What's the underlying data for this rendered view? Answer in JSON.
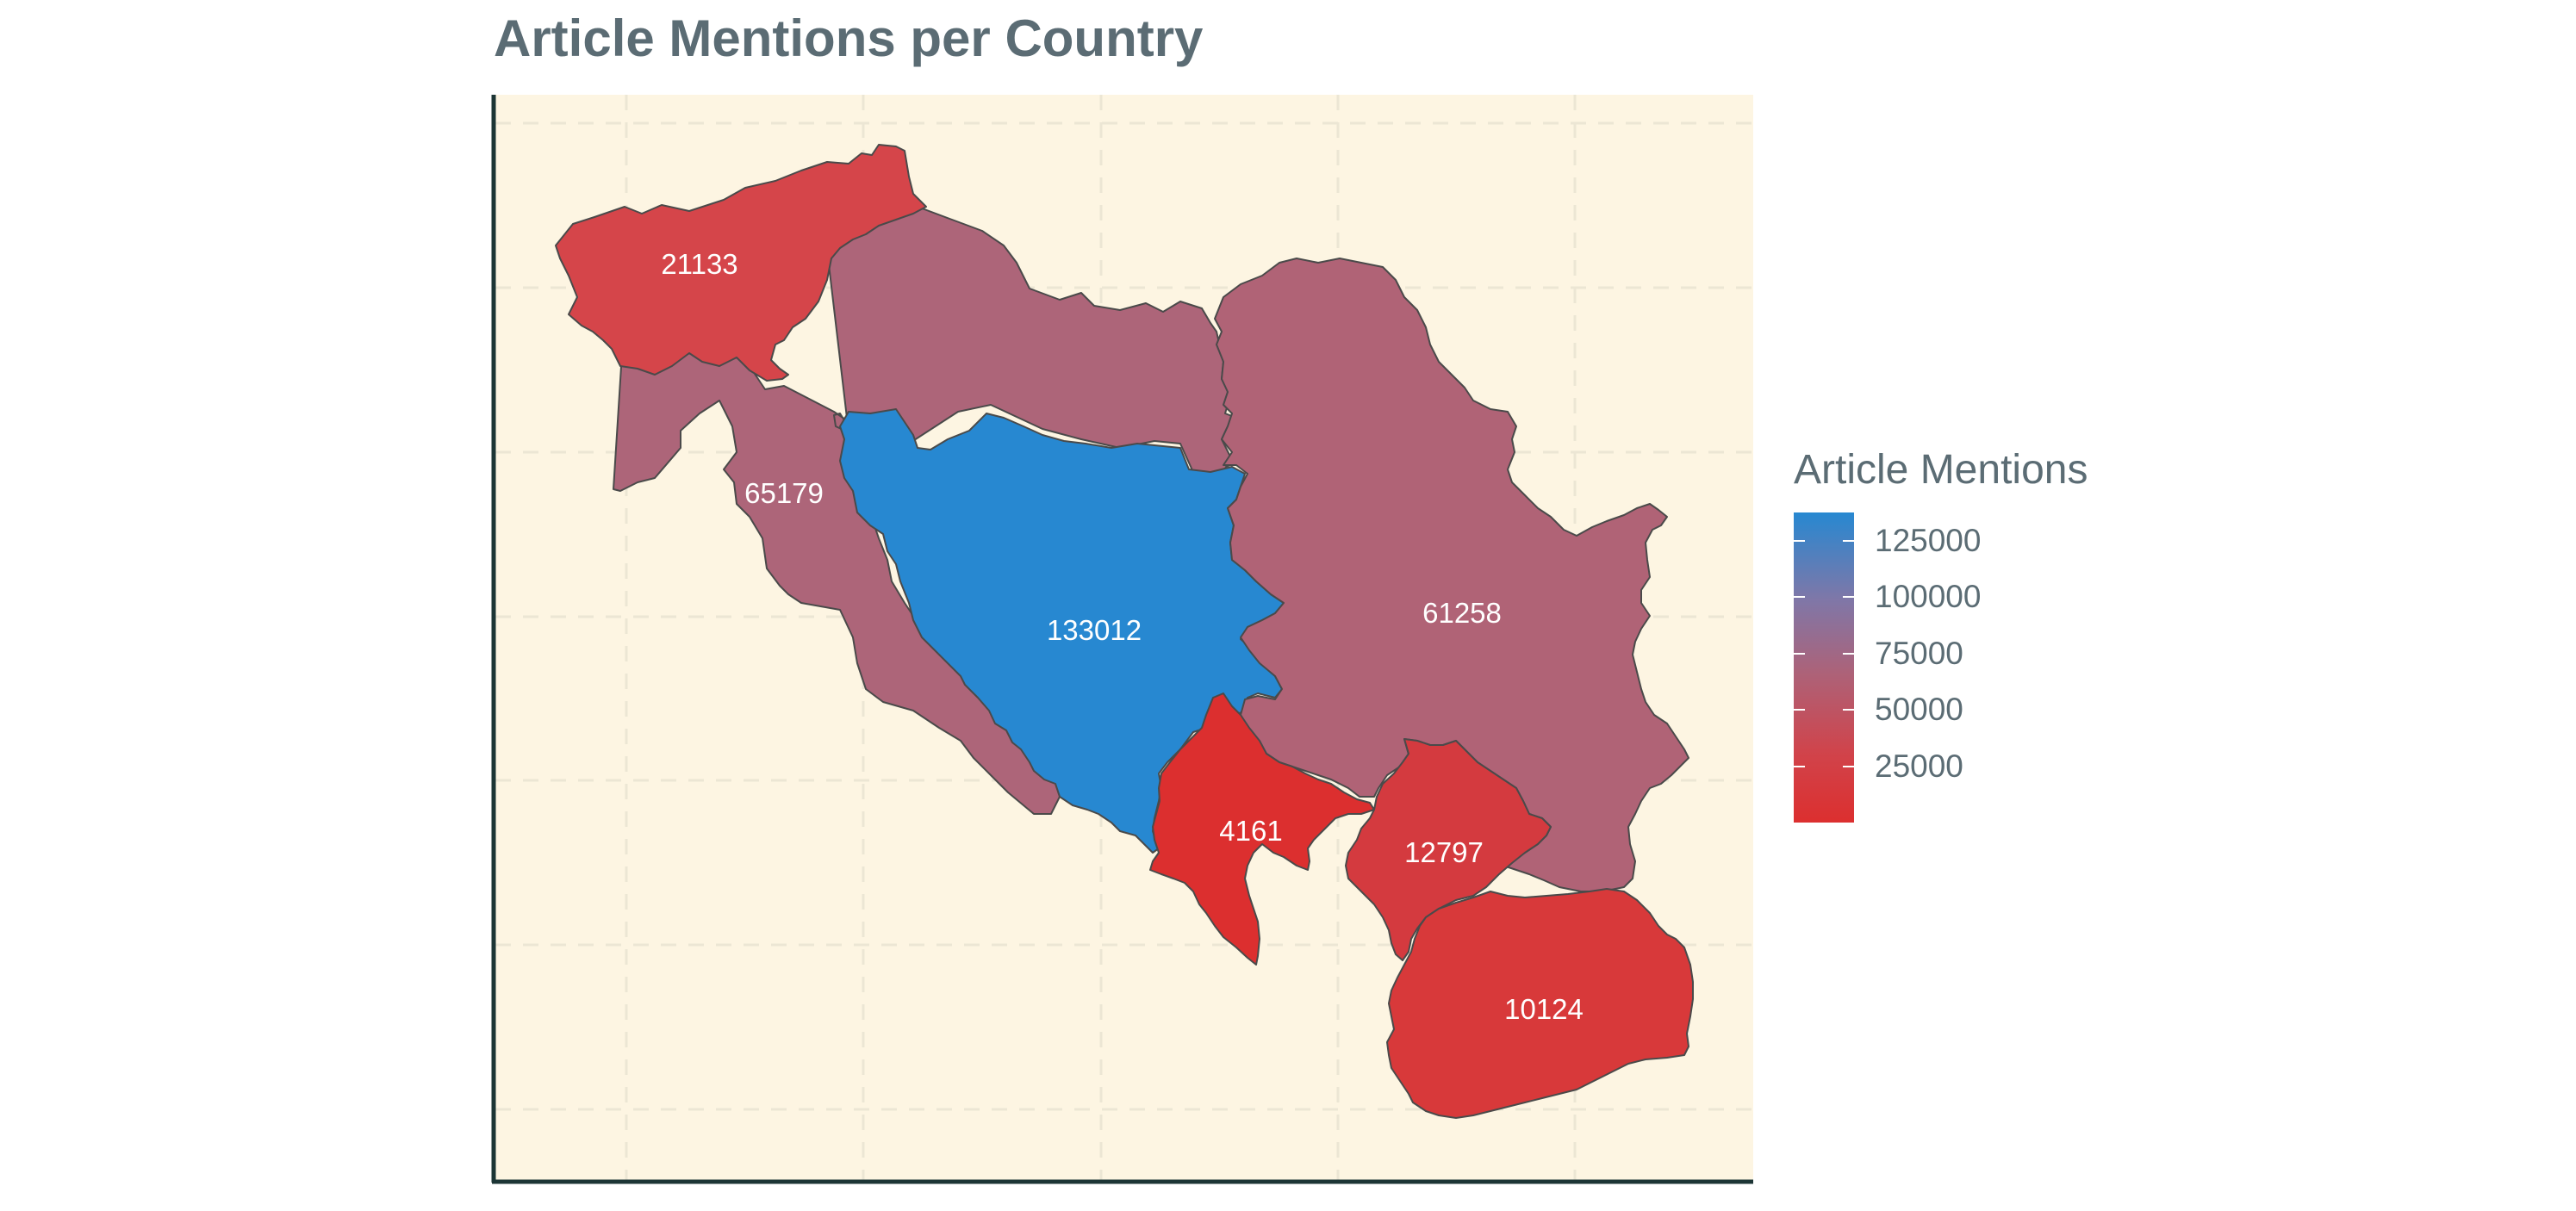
{
  "title": "Article Mentions per Country",
  "legend": {
    "title": "Article Mentions",
    "ticks": [
      125000,
      100000,
      75000,
      50000,
      25000
    ],
    "range": [
      4161,
      133012
    ],
    "low_color": "#dc2f2f",
    "mid_color": "#ad6278",
    "high_color": "#2788d1"
  },
  "colors": {
    "panel_background": "#fdf5e2",
    "grid": "#ece6d4",
    "axis": "#1c3535",
    "border": "#4a4a4a",
    "label_text": "#ffffff",
    "title_text": "#5b6c74"
  },
  "regions": [
    {
      "id": "slovenia",
      "value": 21133,
      "label": "21133",
      "fill": "#d5454a"
    },
    {
      "id": "croatia",
      "value": 65179,
      "label": "65179",
      "fill": "#ad6579"
    },
    {
      "id": "bosnia-herzegovina",
      "value": 133012,
      "label": "133012",
      "fill": "#2788d1"
    },
    {
      "id": "serbia",
      "value": 61258,
      "label": "61258",
      "fill": "#b06376"
    },
    {
      "id": "montenegro",
      "value": 4161,
      "label": "4161",
      "fill": "#dc2f2f"
    },
    {
      "id": "kosovo",
      "value": 12797,
      "label": "12797",
      "fill": "#d43a3f"
    },
    {
      "id": "north-macedonia",
      "value": 10124,
      "label": "10124",
      "fill": "#d8393a"
    }
  ]
}
